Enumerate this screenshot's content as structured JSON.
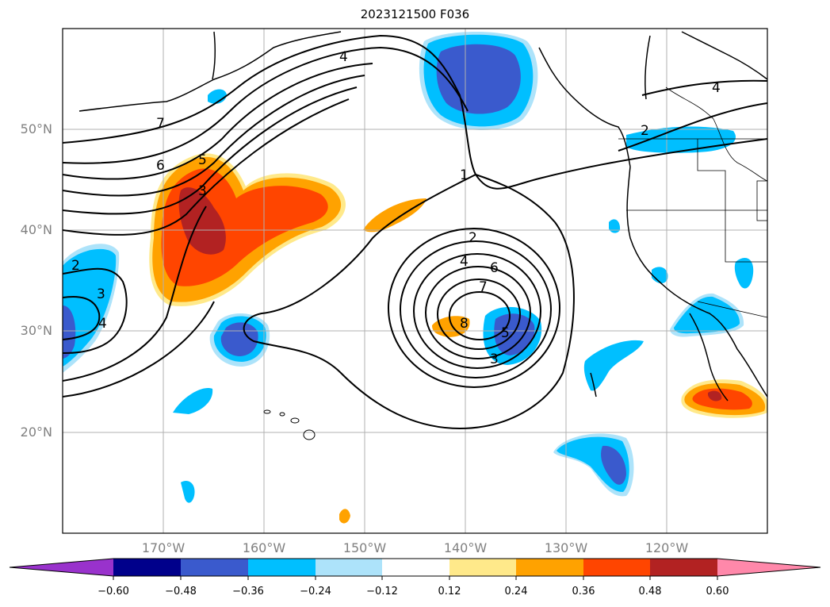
{
  "title": "2023121500 F036",
  "lat_labels": [
    "50°N",
    "40°N",
    "30°N",
    "20°N"
  ],
  "lon_labels": [
    "170°W",
    "160°W",
    "150°W",
    "140°W",
    "130°W",
    "120°W"
  ],
  "colorbar": {
    "ticks": [
      "−0.60",
      "−0.48",
      "−0.36",
      "−0.24",
      "−0.12",
      "0.12",
      "0.24",
      "0.36",
      "0.48",
      "0.60"
    ],
    "colors": [
      "#9932cc",
      "#00008b",
      "#3a5acd",
      "#00bfff",
      "#ade3fa",
      "#ffffff",
      "#ffe98a",
      "#ffa200",
      "#ff4500",
      "#b22222",
      "#ff88aa"
    ]
  },
  "contour_labels": [
    "4",
    "7",
    "6",
    "5",
    "3",
    "1",
    "2",
    "4",
    "6",
    "7",
    "8",
    "5",
    "3",
    "2",
    "3",
    "4",
    "2",
    "4"
  ]
}
